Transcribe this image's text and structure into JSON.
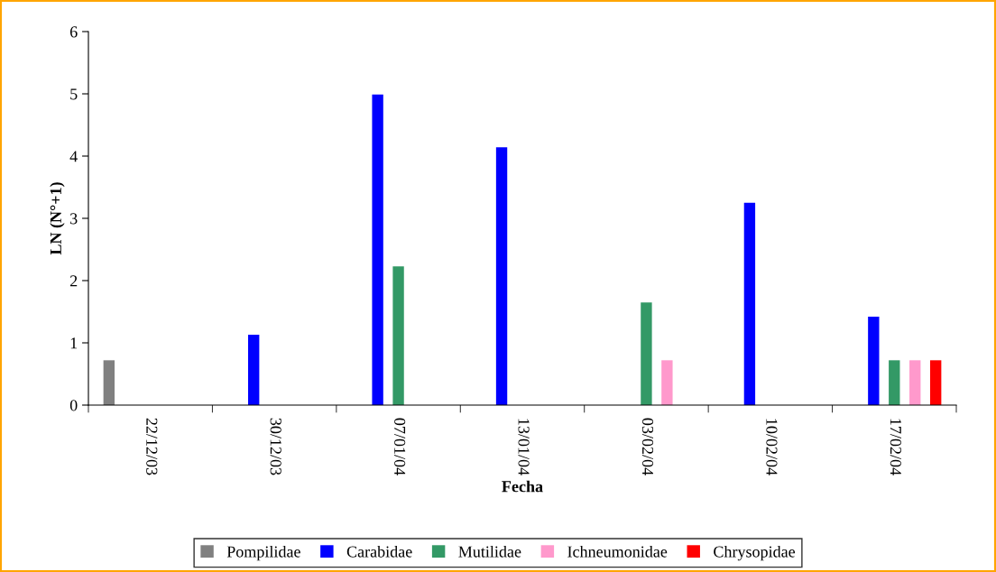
{
  "chart_data": {
    "type": "bar",
    "xlabel": "Fecha",
    "ylabel": "LN (N°+1)",
    "categories": [
      "22/12/03",
      "30/12/03",
      "07/01/04",
      "13/01/04",
      "03/02/04",
      "10/02/04",
      "17/02/04"
    ],
    "series": [
      {
        "name": "Pompilidae",
        "color": "#808080",
        "values": [
          0.72,
          0,
          0,
          0,
          0,
          0,
          0
        ]
      },
      {
        "name": "Carabidae",
        "color": "#0000ff",
        "values": [
          0,
          1.13,
          4.99,
          4.14,
          0,
          3.25,
          1.42
        ]
      },
      {
        "name": "Mutilidae",
        "color": "#339966",
        "values": [
          0,
          0,
          2.23,
          0,
          1.65,
          0,
          0.72
        ]
      },
      {
        "name": "Ichneumonidae",
        "color": "#ff99cc",
        "values": [
          0,
          0,
          0,
          0,
          0.72,
          0,
          0.72
        ]
      },
      {
        "name": "Chrysopidae",
        "color": "#ff0000",
        "values": [
          0,
          0,
          0,
          0,
          0,
          0,
          0.72
        ]
      }
    ],
    "ylim": [
      0,
      6
    ],
    "yticks": [
      0,
      1,
      2,
      3,
      4,
      5,
      6
    ],
    "grid": false,
    "legend": "bottom"
  }
}
